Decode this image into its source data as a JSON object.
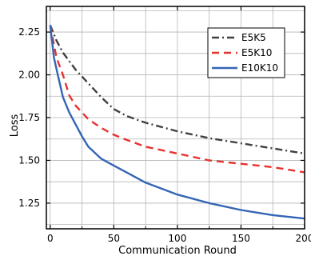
{
  "chart_data": {
    "type": "line",
    "title": "",
    "xlabel": "Communication Round",
    "ylabel": "Loss",
    "xlim": [
      -3,
      200
    ],
    "ylim": [
      1.1,
      2.4
    ],
    "xticks": [
      0,
      50,
      100,
      150,
      200
    ],
    "xtick_labels": [
      "0",
      "50",
      "100",
      "150",
      "200"
    ],
    "yticks": [
      1.25,
      1.5,
      1.75,
      2.0,
      2.25
    ],
    "ytick_labels": [
      "1.25",
      "1.50",
      "1.75",
      "2.00",
      "2.25"
    ],
    "grid": true,
    "legend_position": "top-right",
    "series": [
      {
        "name": "E5K5",
        "color": "#404040",
        "dash": "dashdot",
        "x": [
          0,
          5,
          10,
          20,
          30,
          40,
          50,
          60,
          75,
          100,
          125,
          150,
          175,
          200
        ],
        "y": [
          2.29,
          2.2,
          2.13,
          2.03,
          1.95,
          1.87,
          1.8,
          1.76,
          1.72,
          1.67,
          1.63,
          1.6,
          1.57,
          1.54
        ]
      },
      {
        "name": "E5K10",
        "color": "#e8312f",
        "dash": "dash",
        "x": [
          0,
          5,
          10,
          15,
          20,
          30,
          40,
          50,
          60,
          75,
          100,
          125,
          150,
          175,
          200
        ],
        "y": [
          2.29,
          2.1,
          2.0,
          1.88,
          1.82,
          1.74,
          1.69,
          1.65,
          1.62,
          1.58,
          1.54,
          1.5,
          1.48,
          1.46,
          1.43
        ]
      },
      {
        "name": "E10K10",
        "color": "#3465b5",
        "dash": "solid",
        "x": [
          0,
          3,
          6,
          10,
          15,
          20,
          25,
          30,
          40,
          50,
          60,
          75,
          100,
          125,
          150,
          175,
          200
        ],
        "y": [
          2.29,
          2.1,
          2.0,
          1.87,
          1.78,
          1.71,
          1.64,
          1.58,
          1.51,
          1.47,
          1.43,
          1.37,
          1.3,
          1.25,
          1.21,
          1.18,
          1.16
        ]
      }
    ]
  }
}
